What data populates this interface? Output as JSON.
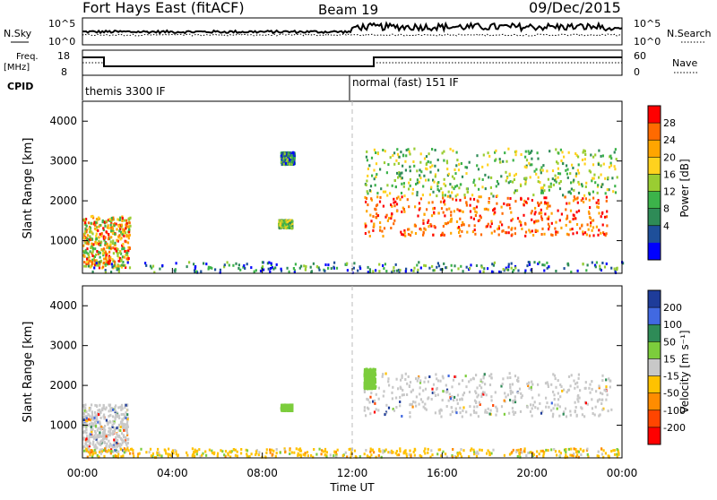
{
  "header": {
    "station": "Fort Hays East (fitACF)",
    "beam": "Beam 19",
    "date": "09/Dec/2015"
  },
  "top_panels": {
    "nsky_label": "N.Sky",
    "nsky_ticks": [
      "10^5",
      "10^0"
    ],
    "nsearch_label": "N.Search",
    "nsearch_ticks": [
      "10^5",
      "10^0"
    ],
    "freq_label": "Freq.",
    "freq_unit": "[MHz]",
    "freq_ticks": [
      "18",
      "8"
    ],
    "nave_label": "Nave",
    "nave_ticks": [
      "60",
      "0"
    ],
    "cpid_label": "CPID",
    "cpid_modes": [
      {
        "label": "themis 3300 IF",
        "start_hour": 0,
        "end_hour": 12
      },
      {
        "label": "normal (fast) 151 IF",
        "start_hour": 12,
        "end_hour": 24
      }
    ]
  },
  "chart_data": [
    {
      "type": "heatmap",
      "name": "power",
      "ylabel": "Slant Range [km]",
      "ylim": [
        180,
        4500
      ],
      "yticks": [
        1000,
        2000,
        3000,
        4000
      ],
      "xlim": [
        0,
        24
      ],
      "colorbar": {
        "label": "Power [dB]",
        "ticks": [
          "28",
          "24",
          "20",
          "16",
          "12",
          "8",
          "4"
        ],
        "colors": [
          "#ff0000",
          "#ff6a00",
          "#ffa500",
          "#ffd21e",
          "#9acd32",
          "#3cb34a",
          "#2e8b57",
          "#1e4f9a",
          "#0000ff"
        ],
        "range": [
          0,
          32
        ]
      },
      "regions": [
        {
          "t0": 0.0,
          "t1": 2.1,
          "r0": 300,
          "r1": 1600,
          "level": "mixed-high"
        },
        {
          "t0": 8.7,
          "t1": 9.3,
          "r0": 1300,
          "r1": 1500,
          "level": "mid"
        },
        {
          "t0": 8.8,
          "t1": 9.4,
          "r0": 2900,
          "r1": 3200,
          "level": "low"
        },
        {
          "t0": 12.5,
          "t1": 23.3,
          "r0": 1100,
          "r1": 2100,
          "level": "high"
        },
        {
          "t0": 12.5,
          "t1": 23.8,
          "r0": 2100,
          "r1": 3300,
          "level": "mid"
        },
        {
          "t0": 0.0,
          "t1": 24.0,
          "r0": 180,
          "r1": 450,
          "level": "low-sparse"
        }
      ]
    },
    {
      "type": "heatmap",
      "name": "velocity",
      "ylabel": "Slant Range [km]",
      "xlabel": "Time UT",
      "ylim": [
        180,
        4500
      ],
      "yticks": [
        1000,
        2000,
        3000,
        4000
      ],
      "xlim": [
        0,
        24
      ],
      "xticks": [
        "00:00",
        "04:00",
        "08:00",
        "12:00",
        "16:00",
        "20:00",
        "00:00"
      ],
      "colorbar": {
        "label": "Velocity [m s⁻¹]",
        "ticks": [
          "200",
          "100",
          "50",
          "15",
          "-15",
          "-50",
          "-100",
          "-200"
        ],
        "colors": [
          "#1e3c9a",
          "#4169e1",
          "#2e8b57",
          "#7ccd3c",
          "#c8c8c8",
          "#ffc200",
          "#ff8c00",
          "#ff4500",
          "#ff0000"
        ],
        "range": [
          -250,
          250
        ]
      },
      "regions": [
        {
          "t0": 0.0,
          "t1": 2.0,
          "r0": 300,
          "r1": 1500,
          "level": "ground"
        },
        {
          "t0": 12.5,
          "t1": 23.5,
          "r0": 1200,
          "r1": 2300,
          "level": "ground"
        },
        {
          "t0": 8.8,
          "t1": 9.3,
          "r0": 1350,
          "r1": 1500,
          "level": "slow-pos"
        },
        {
          "t0": 12.5,
          "t1": 13.0,
          "r0": 1900,
          "r1": 2400,
          "level": "slow-pos"
        },
        {
          "t0": 0.0,
          "t1": 24.0,
          "r0": 180,
          "r1": 400,
          "level": "slow-neg"
        }
      ]
    }
  ]
}
